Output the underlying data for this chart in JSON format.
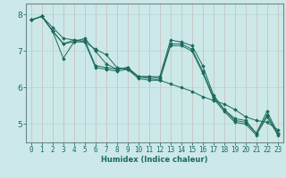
{
  "title": "",
  "xlabel": "Humidex (Indice chaleur)",
  "ylabel": "",
  "bg_color": "#cce8e8",
  "line_color": "#1a6b5a",
  "grid_color": "#b8d4d4",
  "xlim": [
    -0.5,
    23.5
  ],
  "ylim": [
    4.5,
    8.3
  ],
  "yticks": [
    5,
    6,
    7,
    8
  ],
  "xticks": [
    0,
    1,
    2,
    3,
    4,
    5,
    6,
    7,
    8,
    9,
    10,
    11,
    12,
    13,
    14,
    15,
    16,
    17,
    18,
    19,
    20,
    21,
    22,
    23
  ],
  "series": [
    [
      7.85,
      7.95,
      7.65,
      7.35,
      7.3,
      7.25,
      7.05,
      6.9,
      6.55,
      6.5,
      6.3,
      6.25,
      6.2,
      6.1,
      6.0,
      5.9,
      5.75,
      5.65,
      5.55,
      5.4,
      5.2,
      5.1,
      5.05,
      4.85
    ],
    [
      7.85,
      7.95,
      7.55,
      6.8,
      7.25,
      7.35,
      7.0,
      6.65,
      6.5,
      6.55,
      6.3,
      6.3,
      6.3,
      7.3,
      7.25,
      7.15,
      6.6,
      5.8,
      5.4,
      5.15,
      5.1,
      4.75,
      5.35,
      4.75
    ],
    [
      7.85,
      7.95,
      7.55,
      7.2,
      7.3,
      7.3,
      6.6,
      6.55,
      6.5,
      6.55,
      6.3,
      6.3,
      6.25,
      7.2,
      7.2,
      7.05,
      6.45,
      5.75,
      5.4,
      5.1,
      5.05,
      4.75,
      5.25,
      4.75
    ],
    [
      7.85,
      7.95,
      7.55,
      7.2,
      7.25,
      7.25,
      6.55,
      6.5,
      6.45,
      6.5,
      6.25,
      6.2,
      6.2,
      7.15,
      7.15,
      7.0,
      6.4,
      5.7,
      5.35,
      5.05,
      5.0,
      4.7,
      5.2,
      4.7
    ]
  ],
  "xlabel_fontsize": 6.0,
  "tick_fontsize": 5.5,
  "ytick_fontsize": 6.5
}
